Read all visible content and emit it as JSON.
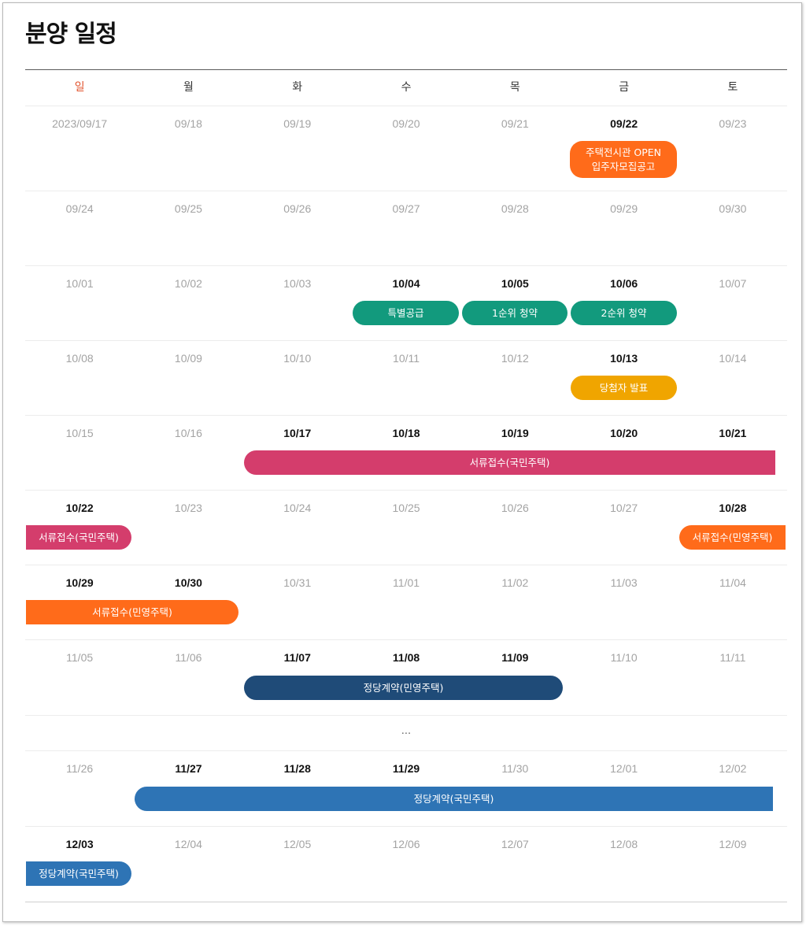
{
  "page_title": "분양 일정",
  "weekdays": [
    "일",
    "월",
    "화",
    "수",
    "목",
    "금",
    "토"
  ],
  "weeks": [
    {
      "dates": [
        "2023/09/17",
        "09/18",
        "09/19",
        "09/20",
        "09/21",
        "09/22",
        "09/23"
      ]
    },
    {
      "dates": [
        "09/24",
        "09/25",
        "09/26",
        "09/27",
        "09/28",
        "09/29",
        "09/30"
      ]
    },
    {
      "dates": [
        "10/01",
        "10/02",
        "10/03",
        "10/04",
        "10/05",
        "10/06",
        "10/07"
      ]
    },
    {
      "dates": [
        "10/08",
        "10/09",
        "10/10",
        "10/11",
        "10/12",
        "10/13",
        "10/14"
      ]
    },
    {
      "dates": [
        "10/15",
        "10/16",
        "10/17",
        "10/18",
        "10/19",
        "10/20",
        "10/21"
      ]
    },
    {
      "dates": [
        "10/22",
        "10/23",
        "10/24",
        "10/25",
        "10/26",
        "10/27",
        "10/28"
      ]
    },
    {
      "dates": [
        "10/29",
        "10/30",
        "10/31",
        "11/01",
        "11/02",
        "11/03",
        "11/04"
      ]
    },
    {
      "dates": [
        "11/05",
        "11/06",
        "11/07",
        "11/08",
        "11/09",
        "11/10",
        "11/11"
      ]
    }
  ],
  "ellipsis": "...",
  "weeks_after": [
    {
      "dates": [
        "11/26",
        "11/27",
        "11/28",
        "11/29",
        "11/30",
        "12/01",
        "12/02"
      ]
    },
    {
      "dates": [
        "12/03",
        "12/04",
        "12/05",
        "12/06",
        "12/07",
        "12/08",
        "12/09"
      ]
    }
  ],
  "events": {
    "housing_open": {
      "line1": "주택전시관 OPEN",
      "line2": "입주자모집공고",
      "color": "#ff6b1a"
    },
    "special_supply": {
      "label": "특별공급",
      "color": "#129a7d"
    },
    "first_rank": {
      "label": "1순위 청약",
      "color": "#129a7d"
    },
    "second_rank": {
      "label": "2순위 청약",
      "color": "#129a7d"
    },
    "winners": {
      "label": "당첨자 발표",
      "color": "#f0a500"
    },
    "docs_public": {
      "label": "서류접수(국민주택)",
      "color": "#d43d6c"
    },
    "docs_private": {
      "label": "서류접수(민영주택)",
      "color": "#ff6b1a"
    },
    "contract_private": {
      "label": "정당계약(민영주택)",
      "color": "#1f4b78"
    },
    "contract_public": {
      "label": "정당계약(국민주택)",
      "color": "#2e74b5"
    }
  }
}
